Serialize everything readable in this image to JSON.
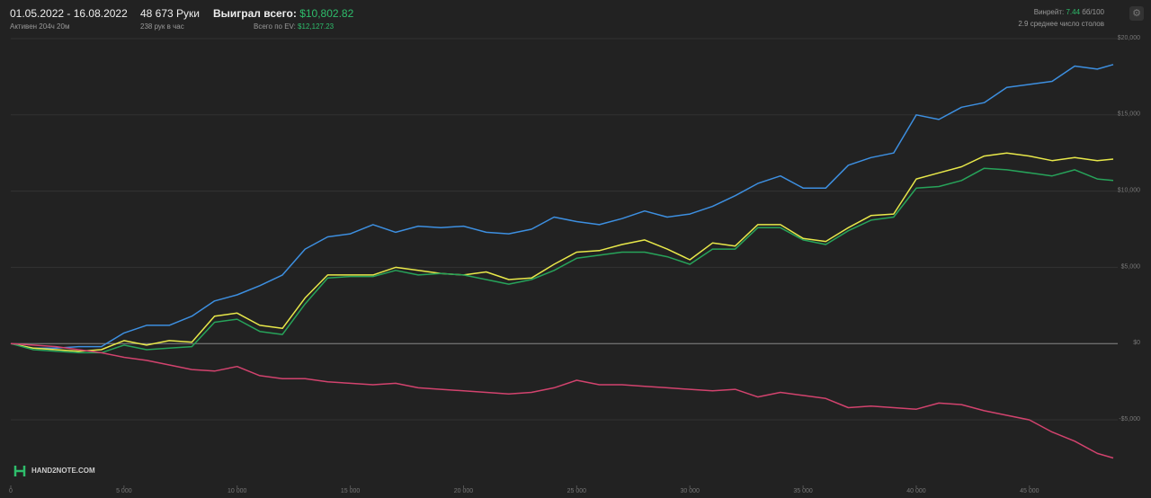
{
  "header": {
    "period": "01.05.2022 - 16.08.2022",
    "active": "Активен 204ч 20м",
    "hands": "48 673 Руки",
    "hands_per_hour": "238 рук в час",
    "won_label": "Выиграл всего:",
    "won_value": "$10,802.82",
    "ev_label": "Всего по EV:",
    "ev_value": "$12,127.23",
    "winrate_label": "Винрейт:",
    "winrate_value": "7.44",
    "winrate_unit": "бб/100",
    "tables": "2.9 среднее число столов",
    "logo": "HAND2NOTE.COM"
  },
  "chart_data": {
    "type": "line",
    "x": [
      0,
      1000,
      2000,
      3000,
      4000,
      5000,
      6000,
      7000,
      8000,
      9000,
      10000,
      11000,
      12000,
      13000,
      14000,
      15000,
      16000,
      17000,
      18000,
      19000,
      20000,
      21000,
      22000,
      23000,
      24000,
      25000,
      26000,
      27000,
      28000,
      29000,
      30000,
      31000,
      32000,
      33000,
      34000,
      35000,
      36000,
      37000,
      38000,
      39000,
      40000,
      41000,
      42000,
      43000,
      44000,
      45000,
      46000,
      47000,
      48000,
      48700
    ],
    "series": [
      {
        "color": "#3d8fe0",
        "values": [
          0,
          -300,
          -300,
          -200,
          -200,
          700,
          1200,
          1200,
          1800,
          2800,
          3200,
          3800,
          4500,
          6200,
          7000,
          7200,
          7800,
          7300,
          7700,
          7600,
          7700,
          7300,
          7200,
          7500,
          8300,
          8000,
          7800,
          8200,
          8700,
          8300,
          8500,
          9000,
          9700,
          10500,
          11000,
          10200,
          10200,
          11700,
          12200,
          12500,
          15000,
          14700,
          15500,
          15800,
          16800,
          17000,
          17200,
          18200,
          18000,
          18300
        ]
      },
      {
        "color": "#e8e84a",
        "values": [
          0,
          -300,
          -400,
          -500,
          -400,
          200,
          -100,
          200,
          100,
          1800,
          2000,
          1200,
          1000,
          3000,
          4500,
          4500,
          4500,
          5000,
          4800,
          4600,
          4500,
          4700,
          4200,
          4300,
          5200,
          6000,
          6100,
          6500,
          6800,
          6200,
          5500,
          6600,
          6400,
          7800,
          7800,
          6900,
          6700,
          7600,
          8400,
          8500,
          10800,
          11200,
          11600,
          12300,
          12500,
          12300,
          12000,
          12200,
          12000,
          12100
        ]
      },
      {
        "color": "#27a35a",
        "values": [
          0,
          -400,
          -500,
          -600,
          -600,
          -100,
          -400,
          -300,
          -200,
          1400,
          1600,
          800,
          600,
          2600,
          4300,
          4400,
          4400,
          4800,
          4500,
          4600,
          4500,
          4200,
          3900,
          4200,
          4800,
          5600,
          5800,
          6000,
          6000,
          5700,
          5200,
          6200,
          6200,
          7600,
          7600,
          6800,
          6500,
          7400,
          8100,
          8300,
          10200,
          10300,
          10700,
          11500,
          11400,
          11200,
          11000,
          11400,
          10800,
          10700
        ]
      },
      {
        "color": "#d2436e",
        "values": [
          0,
          -100,
          -200,
          -400,
          -600,
          -900,
          -1100,
          -1400,
          -1700,
          -1800,
          -1500,
          -2100,
          -2300,
          -2300,
          -2500,
          -2600,
          -2700,
          -2600,
          -2900,
          -3000,
          -3100,
          -3200,
          -3300,
          -3200,
          -2900,
          -2400,
          -2700,
          -2700,
          -2800,
          -2900,
          -3000,
          -3100,
          -3000,
          -3500,
          -3200,
          -3400,
          -3600,
          -4200,
          -4100,
          -4200,
          -4300,
          -3900,
          -4000,
          -4400,
          -4700,
          -5000,
          -5800,
          -6400,
          -7200,
          -7500
        ]
      }
    ],
    "xlim": [
      0,
      48900
    ],
    "ylim": [
      -9300,
      20000
    ],
    "xticks": [
      0,
      {
        "value": 5000,
        "label": "5 000"
      },
      {
        "value": 10000,
        "label": "10 000"
      },
      {
        "value": 15000,
        "label": "15 000"
      },
      {
        "value": 20000,
        "label": "20 000"
      },
      {
        "value": 25000,
        "label": "25 000"
      },
      {
        "value": 30000,
        "label": "30 000"
      },
      {
        "value": 35000,
        "label": "35 000"
      },
      {
        "value": 40000,
        "label": "40 000"
      },
      {
        "value": 45000,
        "label": "45 000"
      }
    ],
    "yticks": [
      {
        "value": -5000,
        "label": "-$5,000"
      },
      {
        "value": 0,
        "label": "$0"
      },
      {
        "value": 5000,
        "label": "$5,000"
      },
      {
        "value": 10000,
        "label": "$10,000"
      },
      {
        "value": 15000,
        "label": "$15,000"
      },
      {
        "value": 20000,
        "label": "$20,000"
      }
    ],
    "grid": true
  }
}
